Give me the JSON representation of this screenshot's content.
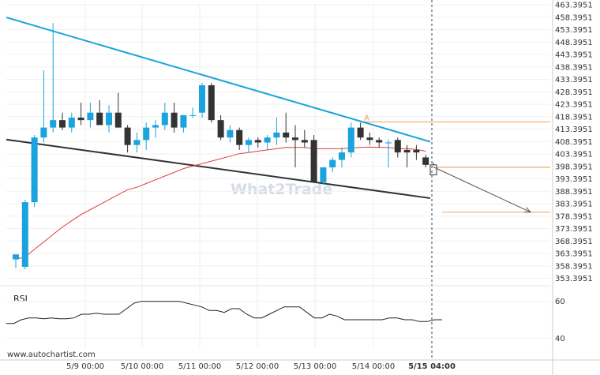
{
  "chart_data": {
    "type": "candlestick",
    "y_ticks": [
      "463.3951",
      "458.3951",
      "453.3951",
      "448.3951",
      "443.3951",
      "438.3951",
      "433.3951",
      "428.3951",
      "423.3951",
      "418.3951",
      "413.3951",
      "408.3951",
      "403.3951",
      "398.3951",
      "393.3951",
      "388.3951",
      "383.3951",
      "378.3951",
      "373.3951",
      "368.3951",
      "363.3951",
      "358.3951",
      "353.3951"
    ],
    "ylim": [
      352.5,
      464.3951
    ],
    "x_ticks": [
      "5/9 00:00",
      "5/10 00:00",
      "5/11 00:00",
      "5/12 00:00",
      "5/13 00:00",
      "5/14 00:00",
      "5/15 04:00"
    ],
    "up_color": "#1aa3dc",
    "down_color": "#333333",
    "candles": [
      {
        "o": 361.0,
        "h": 363.0,
        "l": 357.5,
        "c": 363.0
      },
      {
        "o": 358.0,
        "h": 385.0,
        "l": 357.0,
        "c": 384.0
      },
      {
        "o": 384.0,
        "h": 411.0,
        "l": 382.0,
        "c": 410.0
      },
      {
        "o": 410.0,
        "h": 437.0,
        "l": 408.0,
        "c": 414.0
      },
      {
        "o": 414.0,
        "h": 456.0,
        "l": 412.0,
        "c": 417.0
      },
      {
        "o": 417.0,
        "h": 420.0,
        "l": 413.0,
        "c": 414.0
      },
      {
        "o": 414.0,
        "h": 420.0,
        "l": 412.0,
        "c": 418.0
      },
      {
        "o": 418.0,
        "h": 424.0,
        "l": 415.0,
        "c": 417.0
      },
      {
        "o": 417.0,
        "h": 424.0,
        "l": 414.0,
        "c": 420.0
      },
      {
        "o": 420.0,
        "h": 425.0,
        "l": 416.0,
        "c": 415.0
      },
      {
        "o": 415.0,
        "h": 423.0,
        "l": 412.0,
        "c": 420.0
      },
      {
        "o": 420.0,
        "h": 428.0,
        "l": 414.0,
        "c": 414.0
      },
      {
        "o": 414.0,
        "h": 415.0,
        "l": 404.0,
        "c": 407.0
      },
      {
        "o": 407.0,
        "h": 412.0,
        "l": 404.0,
        "c": 409.0
      },
      {
        "o": 409.0,
        "h": 416.0,
        "l": 405.0,
        "c": 414.0
      },
      {
        "o": 414.0,
        "h": 417.0,
        "l": 410.0,
        "c": 415.0
      },
      {
        "o": 415.0,
        "h": 424.0,
        "l": 413.0,
        "c": 420.0
      },
      {
        "o": 420.0,
        "h": 424.0,
        "l": 412.0,
        "c": 414.0
      },
      {
        "o": 414.0,
        "h": 419.0,
        "l": 412.0,
        "c": 419.0
      },
      {
        "o": 419.0,
        "h": 422.0,
        "l": 418.0,
        "c": 419.0
      },
      {
        "o": 420.0,
        "h": 432.0,
        "l": 418.0,
        "c": 431.0
      },
      {
        "o": 431.0,
        "h": 432.0,
        "l": 416.0,
        "c": 417.0
      },
      {
        "o": 417.0,
        "h": 419.0,
        "l": 409.0,
        "c": 410.0
      },
      {
        "o": 410.0,
        "h": 415.0,
        "l": 408.0,
        "c": 413.0
      },
      {
        "o": 413.0,
        "h": 414.0,
        "l": 405.0,
        "c": 407.0
      },
      {
        "o": 407.0,
        "h": 410.0,
        "l": 404.0,
        "c": 409.0
      },
      {
        "o": 409.0,
        "h": 410.0,
        "l": 406.0,
        "c": 408.0
      },
      {
        "o": 408.0,
        "h": 411.0,
        "l": 405.0,
        "c": 410.0
      },
      {
        "o": 410.0,
        "h": 418.0,
        "l": 407.0,
        "c": 412.0
      },
      {
        "o": 412.0,
        "h": 420.0,
        "l": 408.0,
        "c": 410.0
      },
      {
        "o": 410.0,
        "h": 415.0,
        "l": 398.0,
        "c": 409.0
      },
      {
        "o": 409.0,
        "h": 413.0,
        "l": 406.0,
        "c": 408.0
      },
      {
        "o": 409.0,
        "h": 411.0,
        "l": 392.0,
        "c": 392.0
      },
      {
        "o": 392.0,
        "h": 398.0,
        "l": 391.0,
        "c": 398.0
      },
      {
        "o": 398.0,
        "h": 402.0,
        "l": 396.0,
        "c": 401.0
      },
      {
        "o": 401.0,
        "h": 406.0,
        "l": 398.0,
        "c": 404.0
      },
      {
        "o": 404.0,
        "h": 416.0,
        "l": 402.0,
        "c": 414.0
      },
      {
        "o": 414.0,
        "h": 416.0,
        "l": 409.0,
        "c": 410.0
      },
      {
        "o": 410.0,
        "h": 412.0,
        "l": 407.0,
        "c": 409.0
      },
      {
        "o": 409.0,
        "h": 410.0,
        "l": 406.0,
        "c": 408.0
      },
      {
        "o": 408.0,
        "h": 409.0,
        "l": 398.0,
        "c": 408.0
      },
      {
        "o": 409.0,
        "h": 410.0,
        "l": 402.0,
        "c": 404.0
      },
      {
        "o": 405.0,
        "h": 407.0,
        "l": 398.0,
        "c": 404.0
      },
      {
        "o": 405.0,
        "h": 407.0,
        "l": 401.0,
        "c": 404.0
      },
      {
        "o": 402.0,
        "h": 403.0,
        "l": 398.0,
        "c": 399.0
      }
    ],
    "pending_candle": {
      "o": 399.0,
      "h": 400.0,
      "l": 395.0,
      "c": 395.0
    },
    "moving_average": {
      "color": "#e03b3b",
      "values": [
        361,
        362,
        365,
        368,
        371,
        374,
        376.5,
        379,
        381,
        383,
        385,
        387,
        389,
        390,
        391.5,
        393,
        394.5,
        396,
        397.5,
        398.5,
        399.5,
        400.5,
        401.5,
        402.5,
        403.5,
        404,
        404.5,
        405,
        405.5,
        406,
        406,
        406,
        405.5,
        405.5,
        405.5,
        405.5,
        405.8,
        406,
        406.2,
        406,
        406,
        405.5,
        405.5,
        405.2,
        404.5
      ]
    },
    "resistance_line": {
      "color": "#1aa3dc",
      "from": [
        0,
        458.3
      ],
      "to": [
        44.5,
        408.3
      ]
    },
    "support_line": {
      "color": "#333333",
      "from": [
        0,
        409.2
      ],
      "to": [
        44.5,
        385.6
      ]
    },
    "levels": [
      {
        "label": "A",
        "value": 416.3,
        "color": "#f0a05a"
      },
      {
        "value": 398.0,
        "color": "#f0a05a"
      },
      {
        "value": 380.0,
        "color": "#f0a05a"
      }
    ],
    "forecast_arrow": {
      "from": [
        44.8,
        398.2
      ],
      "to": [
        54.5,
        380.0
      ],
      "color": "#555555"
    },
    "rsi": {
      "label": "RSI",
      "ticks": [
        "60",
        "40"
      ],
      "ylim": [
        35,
        65
      ],
      "values": [
        48,
        48,
        50,
        51,
        51,
        50.5,
        51,
        50.5,
        50.5,
        51,
        53,
        53,
        53.5,
        53,
        53,
        53,
        56,
        59,
        60,
        60,
        60,
        60,
        60,
        60,
        59,
        58,
        57,
        55,
        55,
        54,
        56,
        56,
        53,
        51,
        51,
        53,
        55,
        57,
        57,
        57,
        54,
        51,
        51,
        53,
        52,
        50,
        50,
        50,
        50,
        50,
        50,
        51,
        51,
        50,
        50,
        49,
        49,
        50,
        50
      ],
      "color": "#222222"
    },
    "watermark": "What2Trade",
    "source": "www.autochartist.com"
  }
}
